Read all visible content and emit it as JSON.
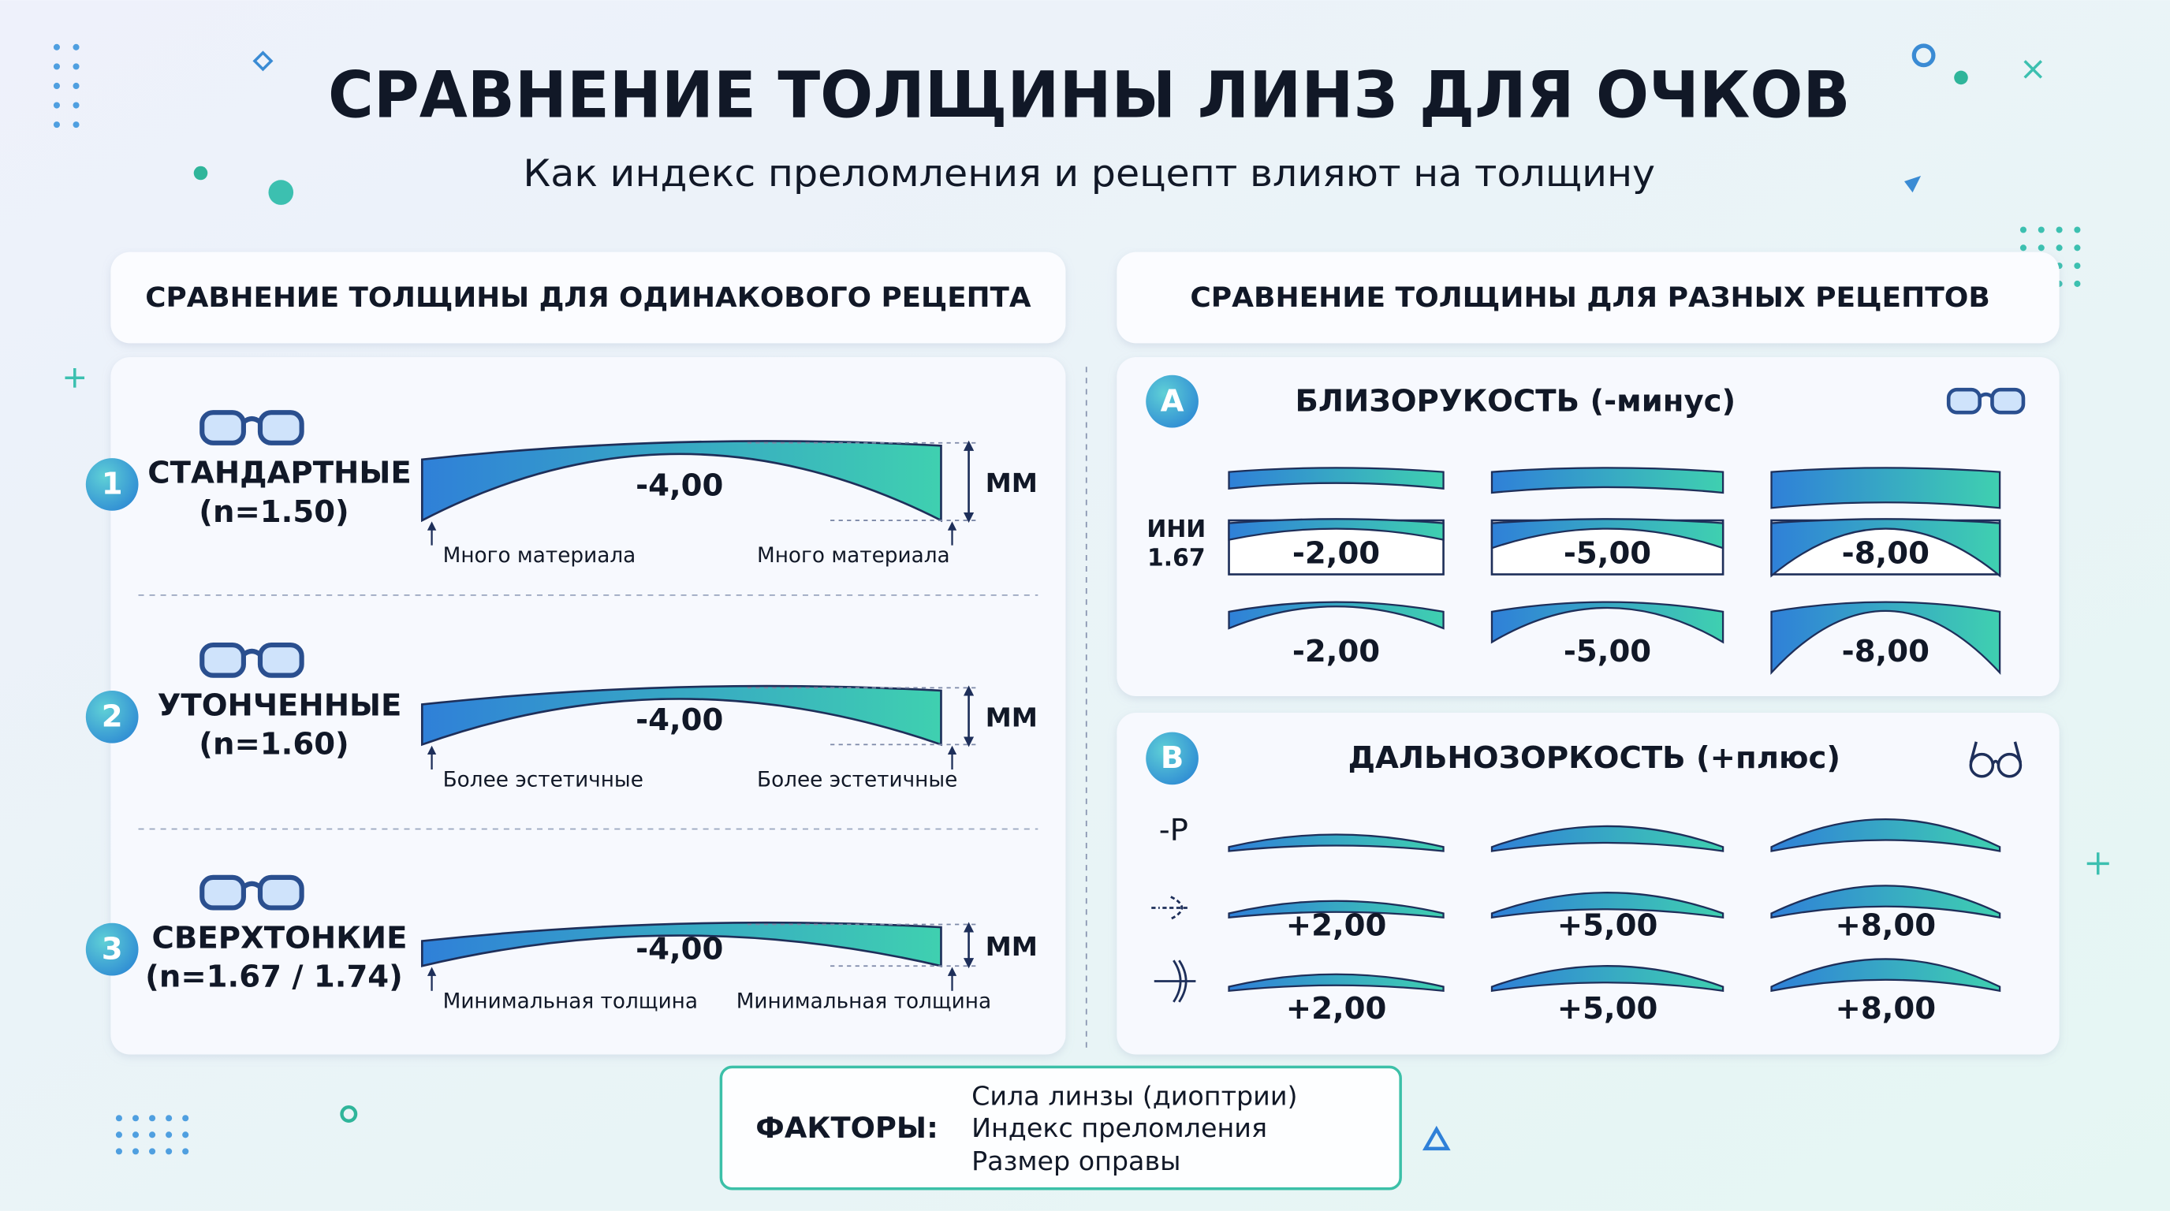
{
  "header": {
    "title": "СРАВНЕНИЕ ТОЛЩИНЫ ЛИНЗ ДЛЯ ОЧКОВ",
    "subtitle": "Как индекс преломления и рецепт влияют на толщину"
  },
  "left_panel": {
    "title": "СРАВНЕНИЕ ТОЛЩИНЫ ДЛЯ ОДИНАКОВОГО РЕЦЕПТА",
    "rows": [
      {
        "number": "1",
        "name": "СТАНДАРТНЫЕ",
        "index": "(n=1.50)",
        "power": "-4,00",
        "unit": "ММ",
        "left_note": "Много материала",
        "right_note": "Много материала"
      },
      {
        "number": "2",
        "name": "УТОНЧЕННЫЕ",
        "index": "(n=1.60)",
        "power": "-4,00",
        "unit": "ММ",
        "left_note": "Более эстетичные",
        "right_note": "Более эстетичные"
      },
      {
        "number": "3",
        "name": "СВЕРХТОНКИЕ",
        "index": "(n=1.67 / 1.74)",
        "power": "-4,00",
        "unit": "ММ",
        "left_note": "Минимальная толщина",
        "right_note": "Минимальная толщина"
      }
    ]
  },
  "right_panel": {
    "title": "СРАВНЕНИЕ ТОЛЩИНЫ ДЛЯ РАЗНЫХ РЕЦЕПТОВ",
    "myopia": {
      "letter": "A",
      "title": "БЛИЗОРУКОСТЬ (-минус)",
      "row_label": [
        "ИНИ",
        "1.67"
      ],
      "row2": [
        "-2,00",
        "-5,00",
        "-8,00"
      ],
      "row3": [
        "-2,00",
        "-5,00",
        "-8,00"
      ]
    },
    "hyperopia": {
      "letter": "B",
      "title": "ДАЛЬНОЗОРКОСТЬ (+плюс)",
      "icon_label": "-P",
      "row2": [
        "+2,00",
        "+5,00",
        "+8,00"
      ],
      "row3": [
        "+2,00",
        "+5,00",
        "+8,00"
      ]
    }
  },
  "factors": {
    "label": "ФАКТОРЫ:",
    "items": [
      "Сила линзы (диоптрии)",
      "Индекс преломления",
      "Размер оправы"
    ]
  }
}
